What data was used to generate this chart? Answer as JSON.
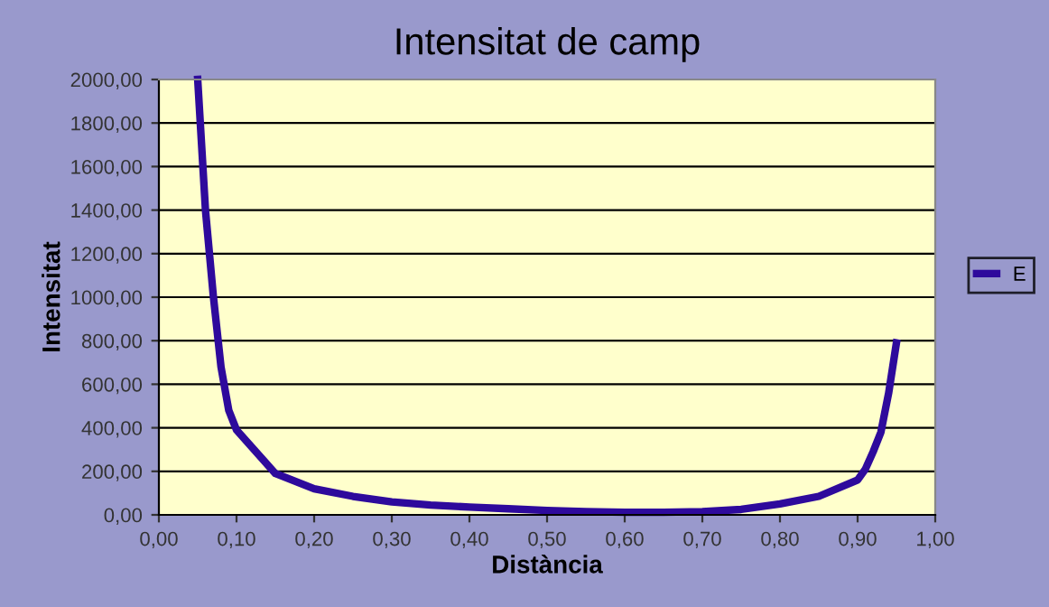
{
  "chart_data": {
    "type": "line",
    "title": "Intensitat de camp",
    "xlabel": "Distància",
    "ylabel": "Intensitat",
    "xlim": [
      0,
      1
    ],
    "xticks": [
      {
        "value": 0,
        "label": "0,00"
      },
      {
        "value": 0.1,
        "label": "0,10"
      },
      {
        "value": 0.2,
        "label": "0,20"
      },
      {
        "value": 0.3,
        "label": "0,30"
      },
      {
        "value": 0.4,
        "label": "0,40"
      },
      {
        "value": 0.5,
        "label": "0,50"
      },
      {
        "value": 0.6,
        "label": "0,60"
      },
      {
        "value": 0.7,
        "label": "0,70"
      },
      {
        "value": 0.8,
        "label": "0,80"
      },
      {
        "value": 0.9,
        "label": "0,90"
      },
      {
        "value": 1,
        "label": "1,00"
      }
    ],
    "ylim": [
      0,
      2000
    ],
    "yticks": [
      {
        "value": 0,
        "label": "0,00"
      },
      {
        "value": 200,
        "label": "200,00"
      },
      {
        "value": 400,
        "label": "400,00"
      },
      {
        "value": 600,
        "label": "600,00"
      },
      {
        "value": 800,
        "label": "800,00"
      },
      {
        "value": 1000,
        "label": "1000,00"
      },
      {
        "value": 1200,
        "label": "1200,00"
      },
      {
        "value": 1400,
        "label": "1400,00"
      },
      {
        "value": 1600,
        "label": "1600,00"
      },
      {
        "value": 1800,
        "label": "1800,00"
      },
      {
        "value": 2000,
        "label": "2000,00"
      }
    ],
    "grid": "y",
    "legend": "right",
    "marker": "none",
    "line_style": "solid",
    "series": [
      {
        "name": "E",
        "color": "#2e0a9c",
        "x": [
          0.05,
          0.06,
          0.07,
          0.08,
          0.09,
          0.1,
          0.15,
          0.2,
          0.25,
          0.3,
          0.35,
          0.4,
          0.45,
          0.5,
          0.55,
          0.6,
          0.65,
          0.7,
          0.75,
          0.8,
          0.85,
          0.9,
          0.91,
          0.92,
          0.93,
          0.94,
          0.95
        ],
        "values": [
          2000,
          1400,
          1010,
          680,
          480,
          390,
          190,
          120,
          85,
          60,
          45,
          36,
          28,
          20,
          15,
          12,
          12,
          15,
          25,
          50,
          85,
          160,
          210,
          290,
          380,
          560,
          790
        ]
      }
    ]
  }
}
